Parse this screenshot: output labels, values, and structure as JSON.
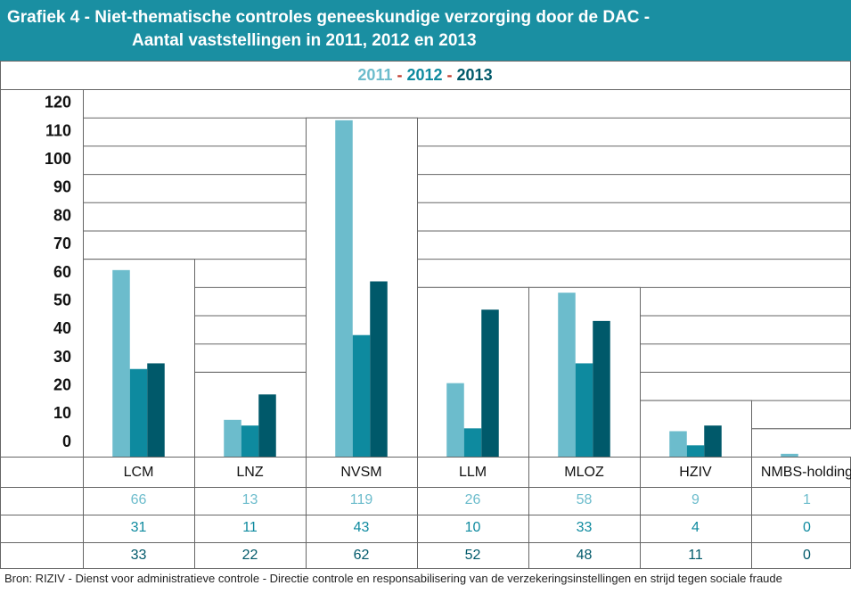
{
  "chart_data": {
    "type": "bar",
    "title": [
      "Grafiek 4 - Niet-thematische controles geneeskundige verzorging door de DAC -",
      "Aantal vaststellingen in 2011, 2012 en 2013"
    ],
    "legend_separator": "-",
    "categories": [
      "LCM",
      "LNZ",
      "NVSM",
      "LLM",
      "MLOZ",
      "HZIV",
      "NMBS-holding"
    ],
    "series": [
      {
        "name": "2011",
        "color": "#6cbccc",
        "values": [
          66,
          13,
          119,
          26,
          58,
          9,
          1
        ]
      },
      {
        "name": "2012",
        "color": "#0e8a9f",
        "values": [
          31,
          11,
          43,
          10,
          33,
          4,
          0
        ]
      },
      {
        "name": "2013",
        "color": "#00596a",
        "values": [
          33,
          22,
          62,
          52,
          48,
          11,
          0
        ]
      }
    ],
    "ylim": [
      0,
      130
    ],
    "yticks": [
      0,
      10,
      20,
      30,
      40,
      50,
      60,
      70,
      80,
      90,
      100,
      110,
      120
    ],
    "source": "Bron: RIZIV - Dienst voor administratieve controle - Directie controle en responsabilisering van de verzekeringsinstellingen en strijd tegen sociale fraude"
  }
}
